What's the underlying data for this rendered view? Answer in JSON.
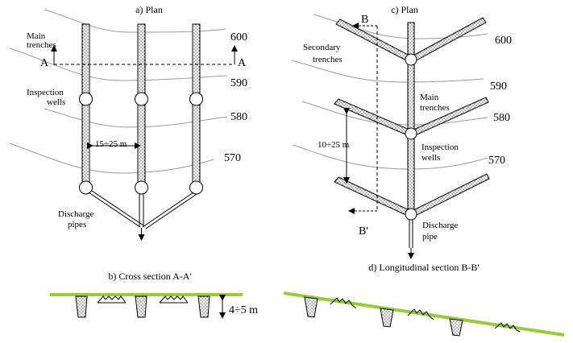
{
  "panels": {
    "a": {
      "title": "a) Plan",
      "contours": [
        "600",
        "590",
        "580",
        "570"
      ],
      "labels": {
        "main_trenches_line1": "Main",
        "main_trenches_line2": "trenches",
        "inspection_line1": "Inspection",
        "inspection_line2": "wells",
        "spacing": "15÷25 m",
        "discharge_line1": "Discharge",
        "discharge_line2": "pipes",
        "section_left": "A",
        "section_right": "A"
      }
    },
    "b": {
      "title": "b) Cross section A-A'",
      "depth": "4÷5 m"
    },
    "c": {
      "title": "c) Plan",
      "contours": [
        "600",
        "590",
        "580",
        "570"
      ],
      "labels": {
        "secondary_line1": "Secondary",
        "secondary_line2": "trenches",
        "main_line1": "Main",
        "main_line2": "trenches",
        "inspection_line1": "Inspection",
        "inspection_line2": "wells",
        "spacing": "10÷25 m",
        "discharge_line1": "Discharge",
        "discharge_line2": "pipe",
        "section_top": "B",
        "section_bottom": "B'"
      }
    },
    "d": {
      "title": "d) Longitudinal section B-B'"
    }
  },
  "colors": {
    "ground": "#99cc33",
    "contour": "#9a9a9a",
    "ink": "#000000"
  }
}
